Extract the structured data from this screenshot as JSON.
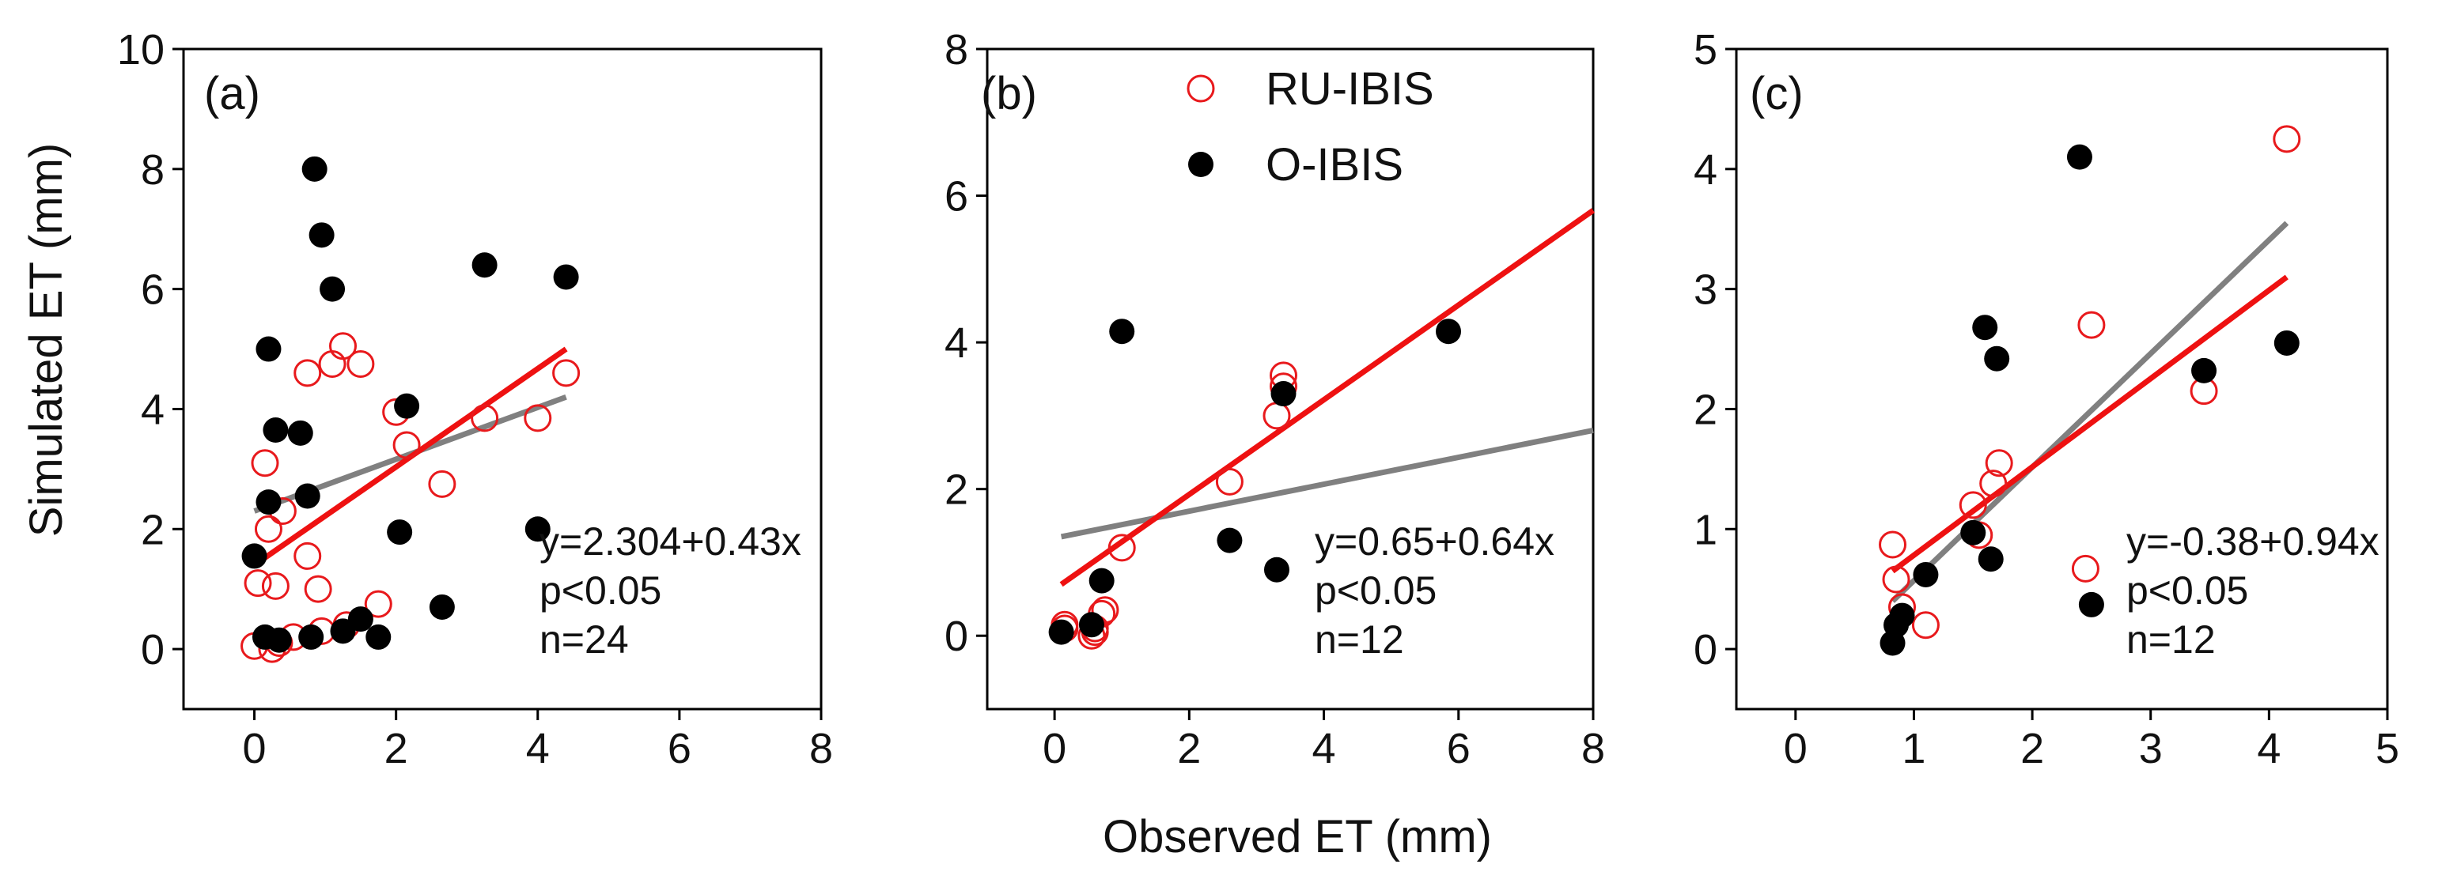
{
  "figure": {
    "ylabel": "Simulated ET (mm)",
    "xlabel": "Observed ET (mm)",
    "legend": [
      {
        "name": "RU-IBIS",
        "marker": "open-circle",
        "color": "#e8191c"
      },
      {
        "name": "O-IBIS",
        "marker": "filled-circle",
        "color": "#000000"
      }
    ]
  },
  "colors": {
    "ru_ibis": "#e8191c",
    "o_ibis": "#000000",
    "fit_ru": "#ee1111",
    "fit_o": "#808080"
  },
  "chart_data": [
    {
      "type": "scatter",
      "panel_label": "(a)",
      "xlim": [
        -1,
        8
      ],
      "ylim": [
        -1,
        10
      ],
      "xticks": [
        0,
        2,
        4,
        6,
        8
      ],
      "yticks": [
        0,
        2,
        4,
        6,
        8,
        10
      ],
      "annotation": [
        "y=2.304+0.43x",
        "p<0.05",
        "n=24"
      ],
      "series": [
        {
          "name": "RU-IBIS",
          "points": [
            [
              0,
              0.05
            ],
            [
              0.05,
              1.1
            ],
            [
              0.15,
              3.1
            ],
            [
              0.2,
              2.0
            ],
            [
              0.25,
              0.0
            ],
            [
              0.3,
              1.05
            ],
            [
              0.35,
              0.1
            ],
            [
              0.4,
              2.3
            ],
            [
              0.55,
              0.2
            ],
            [
              0.75,
              4.6
            ],
            [
              0.75,
              1.55
            ],
            [
              0.9,
              1.0
            ],
            [
              1.1,
              4.75
            ],
            [
              1.25,
              5.05
            ],
            [
              1.5,
              4.75
            ],
            [
              1.75,
              0.75
            ],
            [
              2.0,
              3.95
            ],
            [
              2.15,
              3.4
            ],
            [
              2.65,
              2.75
            ],
            [
              3.25,
              3.85
            ],
            [
              4.0,
              3.85
            ],
            [
              4.4,
              4.6
            ],
            [
              1.3,
              0.4
            ],
            [
              0.95,
              0.3
            ]
          ]
        },
        {
          "name": "O-IBIS",
          "points": [
            [
              0,
              1.55
            ],
            [
              0.15,
              0.2
            ],
            [
              0.2,
              5.0
            ],
            [
              0.2,
              2.45
            ],
            [
              0.3,
              3.65
            ],
            [
              0.35,
              0.15
            ],
            [
              0.65,
              3.6
            ],
            [
              0.75,
              2.55
            ],
            [
              0.8,
              0.2
            ],
            [
              0.85,
              8.0
            ],
            [
              0.95,
              6.9
            ],
            [
              1.1,
              6.0
            ],
            [
              1.25,
              0.3
            ],
            [
              1.5,
              0.5
            ],
            [
              1.75,
              0.2
            ],
            [
              2.05,
              1.95
            ],
            [
              2.15,
              4.05
            ],
            [
              2.65,
              0.7
            ],
            [
              3.25,
              6.4
            ],
            [
              4.0,
              2.0
            ],
            [
              4.4,
              6.2
            ]
          ]
        }
      ],
      "fits": [
        {
          "name": "RU-IBIS fit",
          "x": [
            0,
            4.4
          ],
          "y": [
            1.4,
            5.0
          ]
        },
        {
          "name": "O-IBIS fit",
          "x": [
            0,
            4.4
          ],
          "y": [
            2.3,
            4.2
          ]
        }
      ]
    },
    {
      "type": "scatter",
      "panel_label": "(b)",
      "xlim": [
        -1,
        8
      ],
      "ylim": [
        -1,
        8
      ],
      "xticks": [
        0,
        2,
        4,
        6,
        8
      ],
      "yticks": [
        0,
        2,
        4,
        6,
        8
      ],
      "annotation": [
        "y=0.65+0.64x",
        "p<0.05",
        "n=12"
      ],
      "series": [
        {
          "name": "RU-IBIS",
          "points": [
            [
              0.15,
              0.15
            ],
            [
              0.55,
              0.0
            ],
            [
              0.6,
              0.1
            ],
            [
              0.75,
              0.35
            ],
            [
              1.0,
              1.2
            ],
            [
              2.6,
              2.1
            ],
            [
              3.3,
              3.0
            ],
            [
              3.4,
              3.55
            ],
            [
              0.6,
              0.05
            ],
            [
              0.7,
              0.3
            ],
            [
              3.4,
              3.4
            ],
            [
              0.15,
              0.1
            ]
          ]
        },
        {
          "name": "O-IBIS",
          "points": [
            [
              0.1,
              0.05
            ],
            [
              0.55,
              0.15
            ],
            [
              0.7,
              0.75
            ],
            [
              1.0,
              4.15
            ],
            [
              2.6,
              1.3
            ],
            [
              3.3,
              0.9
            ],
            [
              3.4,
              3.3
            ],
            [
              5.85,
              4.15
            ]
          ]
        }
      ],
      "fits": [
        {
          "name": "RU-IBIS fit",
          "x": [
            0.1,
            8.0
          ],
          "y": [
            0.7,
            5.8
          ]
        },
        {
          "name": "O-IBIS fit",
          "x": [
            0.1,
            8.0
          ],
          "y": [
            1.35,
            2.8
          ]
        }
      ]
    },
    {
      "type": "scatter",
      "panel_label": "(c)",
      "xlim": [
        -0.5,
        5
      ],
      "ylim": [
        -0.5,
        5
      ],
      "xticks": [
        0,
        1,
        2,
        3,
        4,
        5
      ],
      "yticks": [
        0,
        1,
        2,
        3,
        4,
        5
      ],
      "annotation": [
        "y=-0.38+0.94x",
        "p<0.05",
        "n=12"
      ],
      "series": [
        {
          "name": "RU-IBIS",
          "points": [
            [
              0.82,
              0.87
            ],
            [
              0.85,
              0.58
            ],
            [
              0.9,
              0.35
            ],
            [
              1.1,
              0.2
            ],
            [
              1.5,
              1.2
            ],
            [
              1.55,
              0.95
            ],
            [
              1.67,
              1.38
            ],
            [
              1.72,
              1.55
            ],
            [
              2.45,
              0.67
            ],
            [
              2.5,
              2.7
            ],
            [
              3.45,
              2.15
            ],
            [
              4.15,
              4.25
            ]
          ]
        },
        {
          "name": "O-IBIS",
          "points": [
            [
              0.82,
              0.05
            ],
            [
              0.85,
              0.2
            ],
            [
              0.9,
              0.28
            ],
            [
              1.1,
              0.62
            ],
            [
              1.5,
              0.97
            ],
            [
              1.6,
              2.68
            ],
            [
              1.65,
              0.75
            ],
            [
              1.7,
              2.42
            ],
            [
              2.4,
              4.1
            ],
            [
              2.5,
              0.37
            ],
            [
              3.45,
              2.32
            ],
            [
              4.15,
              2.55
            ]
          ]
        }
      ],
      "fits": [
        {
          "name": "RU-IBIS fit",
          "x": [
            0.82,
            4.15
          ],
          "y": [
            0.65,
            3.1
          ]
        },
        {
          "name": "O-IBIS fit",
          "x": [
            0.82,
            4.15
          ],
          "y": [
            0.4,
            3.55
          ]
        }
      ]
    }
  ]
}
